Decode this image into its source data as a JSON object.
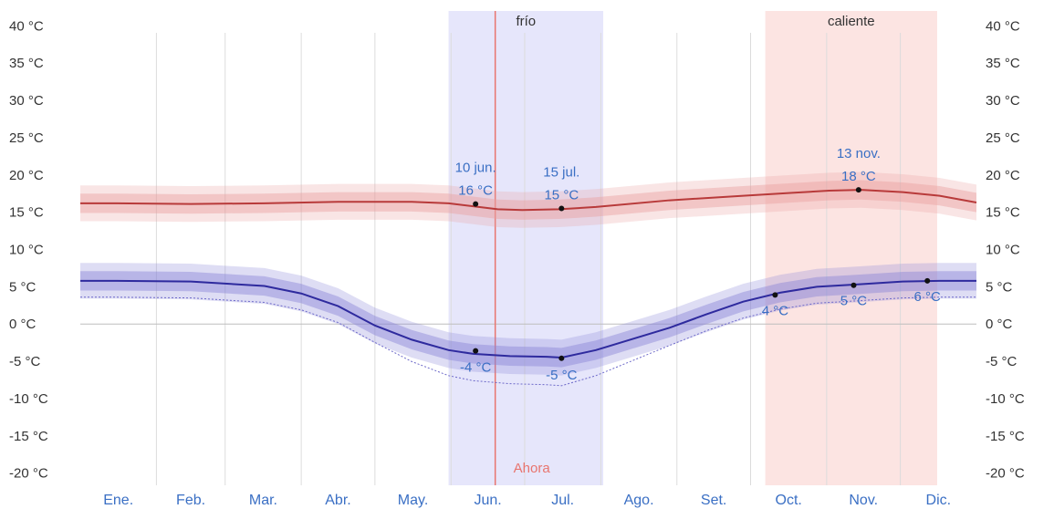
{
  "chart_data": {
    "type": "line",
    "x_unit": "day_of_year",
    "xlim": [
      0,
      365
    ],
    "ylim": [
      -22,
      42
    ],
    "grid": true,
    "y_ticks": [
      40,
      35,
      30,
      25,
      20,
      15,
      10,
      5,
      0,
      -5,
      -10,
      -15,
      -20
    ],
    "y_tick_labels": [
      "40 °C",
      "35 °C",
      "30 °C",
      "25 °C",
      "20 °C",
      "15 °C",
      "10 °C",
      "5 °C",
      "0 °C",
      "-5 °C",
      "-10 °C",
      "-15 °C",
      "-20 °C"
    ],
    "months": [
      "Ene.",
      "Feb.",
      "Mar.",
      "Abr.",
      "May.",
      "Jun.",
      "Jul.",
      "Ago.",
      "Set.",
      "Oct.",
      "Nov.",
      "Dic."
    ],
    "month_starts": [
      0,
      31,
      59,
      90,
      120,
      151,
      181,
      212,
      243,
      273,
      304,
      334
    ],
    "seasons": [
      {
        "label": "frío",
        "start": 150,
        "end": 213,
        "color": "#e6e6fb"
      },
      {
        "label": "caliente",
        "start": 279,
        "end": 349,
        "color": "#fce4e2"
      }
    ],
    "now": {
      "label": "Ahora",
      "day": 169,
      "color": "#e8746e"
    },
    "series": [
      {
        "color": "#b83a3a",
        "band_color": "#e8a0a0",
        "x": [
          0,
          15,
          45,
          75,
          105,
          135,
          150,
          160,
          170,
          180,
          195,
          210,
          240,
          270,
          290,
          305,
          318,
          335,
          350,
          365
        ],
        "values": [
          16.2,
          16.2,
          16.1,
          16.2,
          16.4,
          16.4,
          16.2,
          15.8,
          15.4,
          15.3,
          15.4,
          15.7,
          16.6,
          17.2,
          17.6,
          17.9,
          18.0,
          17.7,
          17.2,
          16.3
        ],
        "annotations": [
          {
            "x": 161,
            "y": 16.1,
            "label": [
              "10 jun.",
              "16 °C"
            ]
          },
          {
            "x": 196,
            "y": 15.5,
            "label": [
              "15 jul.",
              "15 °C"
            ]
          },
          {
            "x": 317,
            "y": 18.0,
            "label": [
              "13 nov.",
              "18 °C"
            ]
          }
        ]
      },
      {
        "color": "#2e2a9e",
        "band_color": "#8a86d8",
        "x": [
          0,
          15,
          45,
          75,
          90,
          105,
          120,
          135,
          150,
          160,
          175,
          190,
          196,
          210,
          225,
          240,
          255,
          270,
          285,
          300,
          316,
          335,
          350,
          365
        ],
        "values": [
          5.8,
          5.8,
          5.7,
          5.1,
          4.1,
          2.4,
          -0.2,
          -2.1,
          -3.5,
          -4.0,
          -4.3,
          -4.4,
          -4.5,
          -3.5,
          -2.0,
          -0.5,
          1.3,
          3.0,
          4.2,
          5.0,
          5.3,
          5.7,
          5.8,
          5.8
        ],
        "annotations": [
          {
            "x": 161,
            "y": -3.6,
            "label": [
              "-4 °C"
            ]
          },
          {
            "x": 196,
            "y": -4.6,
            "label": [
              "-5 °C"
            ]
          },
          {
            "x": 283,
            "y": 3.9,
            "label": [
              "4 °C"
            ]
          },
          {
            "x": 315,
            "y": 5.2,
            "label": [
              "5 °C"
            ]
          },
          {
            "x": 345,
            "y": 5.8,
            "label": [
              "6 °C"
            ]
          }
        ]
      }
    ]
  }
}
